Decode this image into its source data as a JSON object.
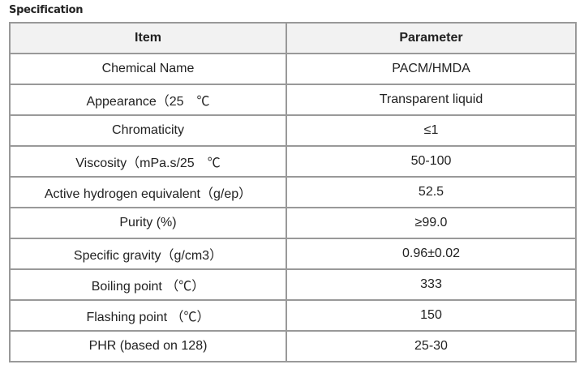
{
  "title": "Specification",
  "headers": [
    "Item",
    "Parameter"
  ],
  "rows": [
    [
      "Chemical Name",
      "PACM/HMDA"
    ],
    [
      "Appearance（25　℃",
      "Transparent liquid"
    ],
    [
      "Chromaticity",
      "≤1"
    ],
    [
      "Viscosity（mPa.s/25　℃",
      "50-100"
    ],
    [
      "Active hydrogen equivalent（g/ep）",
      "52.5"
    ],
    [
      "Purity (%)",
      "≥99.0"
    ],
    [
      "Specific gravity（g/cm3）",
      "0.96±0.02"
    ],
    [
      "Boiling point （℃）",
      "333"
    ],
    [
      "Flashing point （℃）",
      "150"
    ],
    [
      "PHR (based on 128)",
      "25-30"
    ]
  ]
}
